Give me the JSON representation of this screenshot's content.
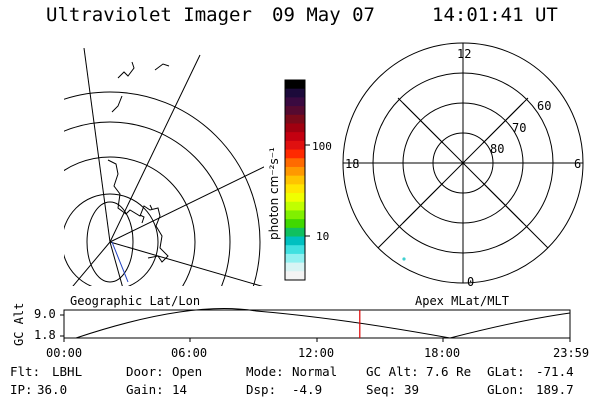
{
  "header": {
    "instrument": "Ultraviolet Imager",
    "date": "09 May 07",
    "time": "14:01:41 UT"
  },
  "colorbar": {
    "unit_label": "photon cm⁻²s⁻¹",
    "ticks": [
      "100",
      "10"
    ],
    "colors": [
      "#000000",
      "#1c0a3a",
      "#3a0a40",
      "#550a30",
      "#7a0a1a",
      "#a00010",
      "#c40010",
      "#e01010",
      "#ff2a00",
      "#ff6a00",
      "#ff9800",
      "#ffc400",
      "#ffe600",
      "#f0ff00",
      "#c0ff00",
      "#80f000",
      "#40d800",
      "#10c060",
      "#00c0c0",
      "#40e0e0",
      "#90f0f0",
      "#d8f4f4",
      "#f4f4f4"
    ]
  },
  "geo_panel": {
    "label": "Geographic Lat/Lon"
  },
  "polar_panel": {
    "label": "Apex MLat/MLT",
    "mlt_labels": {
      "top": "12",
      "left": "18",
      "right": "6",
      "bottom": "0"
    },
    "lat_labels": [
      "60",
      "70",
      "80"
    ]
  },
  "altitude_plot": {
    "ylabel": "GC Alt",
    "yticks": [
      "9.0",
      "1.8"
    ],
    "xticks": [
      "00:00",
      "06:00",
      "12:00",
      "18:00",
      "23:59"
    ],
    "current_time_hours": 14.03
  },
  "info": {
    "filter_label": "Flt:",
    "filter": "LBHL",
    "ip_label": "IP:",
    "ip": "36.0",
    "door_label": "Door:",
    "door": "Open",
    "gain_label": "Gain:",
    "gain": "14",
    "mode_label": "Mode:",
    "mode": "Normal",
    "dsp_label": "Dsp:",
    "dsp": "-4.9",
    "gcalt_label": "GC Alt:",
    "gcalt": "7.6 Re",
    "seq_label": "Seq:",
    "seq": "39",
    "glat_label": "GLat:",
    "glat": "-71.4",
    "glon_label": "GLon:",
    "glon": "189.7"
  }
}
